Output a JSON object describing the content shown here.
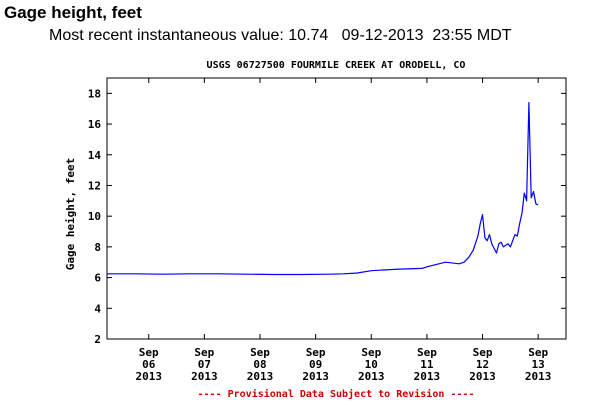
{
  "header": {
    "title": "Gage height, feet",
    "recent_label": "Most recent instantaneous value:",
    "recent_value": "10.74",
    "recent_date": "09-12-2013",
    "recent_time": "23:55 MDT"
  },
  "chart_data": {
    "type": "line",
    "title": "USGS 06727500 FOURMILE CREEK AT ORODELL, CO",
    "ylabel": "Gage height, feet",
    "xlabel": "",
    "ylim": [
      2,
      19
    ],
    "yticks": [
      2,
      4,
      6,
      8,
      10,
      12,
      14,
      16,
      18
    ],
    "xlim": [
      "2013-09-05 06:00",
      "2013-09-13 12:00"
    ],
    "xticks": [
      {
        "date": "2013-09-06 00:00",
        "lines": [
          "Sep",
          "06",
          "2013"
        ]
      },
      {
        "date": "2013-09-07 00:00",
        "lines": [
          "Sep",
          "07",
          "2013"
        ]
      },
      {
        "date": "2013-09-08 00:00",
        "lines": [
          "Sep",
          "08",
          "2013"
        ]
      },
      {
        "date": "2013-09-09 00:00",
        "lines": [
          "Sep",
          "09",
          "2013"
        ]
      },
      {
        "date": "2013-09-10 00:00",
        "lines": [
          "Sep",
          "10",
          "2013"
        ]
      },
      {
        "date": "2013-09-11 00:00",
        "lines": [
          "Sep",
          "11",
          "2013"
        ]
      },
      {
        "date": "2013-09-12 00:00",
        "lines": [
          "Sep",
          "12",
          "2013"
        ]
      },
      {
        "date": "2013-09-13 00:00",
        "lines": [
          "Sep",
          "13",
          "2013"
        ]
      }
    ],
    "grid": false,
    "footer": "---- Provisional Data Subject to Revision ----",
    "colors": {
      "line": "#0000ff",
      "footer": "#cc0000",
      "axis": "#000000"
    },
    "series": [
      {
        "x": [
          "2013-09-05 06:00",
          "2013-09-05 18:00",
          "2013-09-06 06:00",
          "2013-09-06 18:00",
          "2013-09-07 06:00",
          "2013-09-07 18:00",
          "2013-09-08 06:00",
          "2013-09-08 18:00",
          "2013-09-09 06:00",
          "2013-09-09 12:00",
          "2013-09-09 18:00",
          "2013-09-10 00:00",
          "2013-09-10 12:00",
          "2013-09-10 22:00",
          "2013-09-11 00:00",
          "2013-09-11 08:00",
          "2013-09-11 14:00",
          "2013-09-11 16:00",
          "2013-09-11 18:00",
          "2013-09-11 20:00",
          "2013-09-11 22:00",
          "2013-09-11 23:00",
          "2013-09-12 00:00",
          "2013-09-12 01:00",
          "2013-09-12 02:00",
          "2013-09-12 03:00",
          "2013-09-12 04:00",
          "2013-09-12 05:00",
          "2013-09-12 06:00",
          "2013-09-12 07:00",
          "2013-09-12 08:00",
          "2013-09-12 09:00",
          "2013-09-12 10:00",
          "2013-09-12 11:00",
          "2013-09-12 12:00",
          "2013-09-12 13:00",
          "2013-09-12 14:00",
          "2013-09-12 15:00",
          "2013-09-12 16:00",
          "2013-09-12 17:00",
          "2013-09-12 18:00",
          "2013-09-12 19:00",
          "2013-09-12 20:00",
          "2013-09-12 21:00",
          "2013-09-12 22:00",
          "2013-09-12 23:00",
          "2013-09-12 23:55"
        ],
        "y": [
          6.25,
          6.25,
          6.22,
          6.25,
          6.25,
          6.22,
          6.2,
          6.2,
          6.22,
          6.25,
          6.3,
          6.45,
          6.55,
          6.6,
          6.7,
          7.0,
          6.9,
          7.0,
          7.3,
          7.8,
          8.7,
          9.5,
          10.1,
          8.6,
          8.4,
          8.8,
          8.2,
          7.9,
          7.6,
          8.2,
          8.3,
          8.0,
          8.1,
          8.2,
          8.0,
          8.4,
          8.8,
          8.7,
          9.5,
          10.2,
          11.5,
          11.0,
          17.4,
          11.2,
          11.6,
          10.8,
          10.74
        ]
      }
    ]
  }
}
